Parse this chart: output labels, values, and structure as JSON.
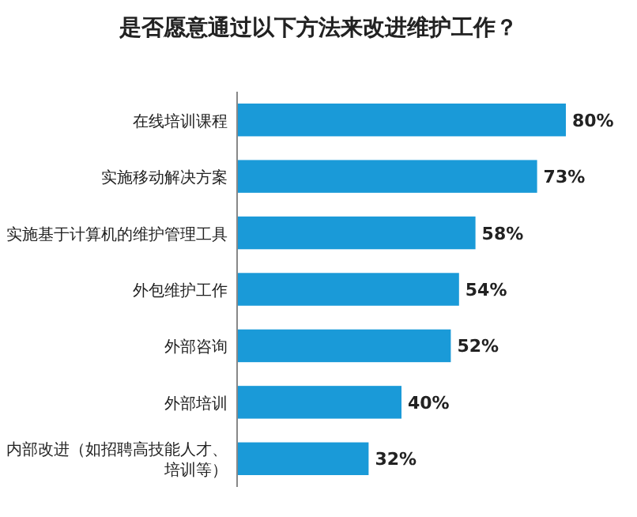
{
  "chart_data": {
    "type": "bar",
    "orientation": "horizontal",
    "title": "是否愿意通过以下方法来改进维护工作？",
    "categories": [
      "在线培训课程",
      "实施移动解决方案",
      "实施基于计算机的维护管理工具",
      "外包维护工作",
      "外部咨询",
      "外部培训",
      "内部改进（如招聘高技能人才、培训等）"
    ],
    "values": [
      80,
      73,
      58,
      54,
      52,
      40,
      32
    ],
    "value_labels": [
      "80%",
      "73%",
      "58%",
      "54%",
      "52%",
      "40%",
      "32%"
    ],
    "color": "#1a9ad8"
  }
}
